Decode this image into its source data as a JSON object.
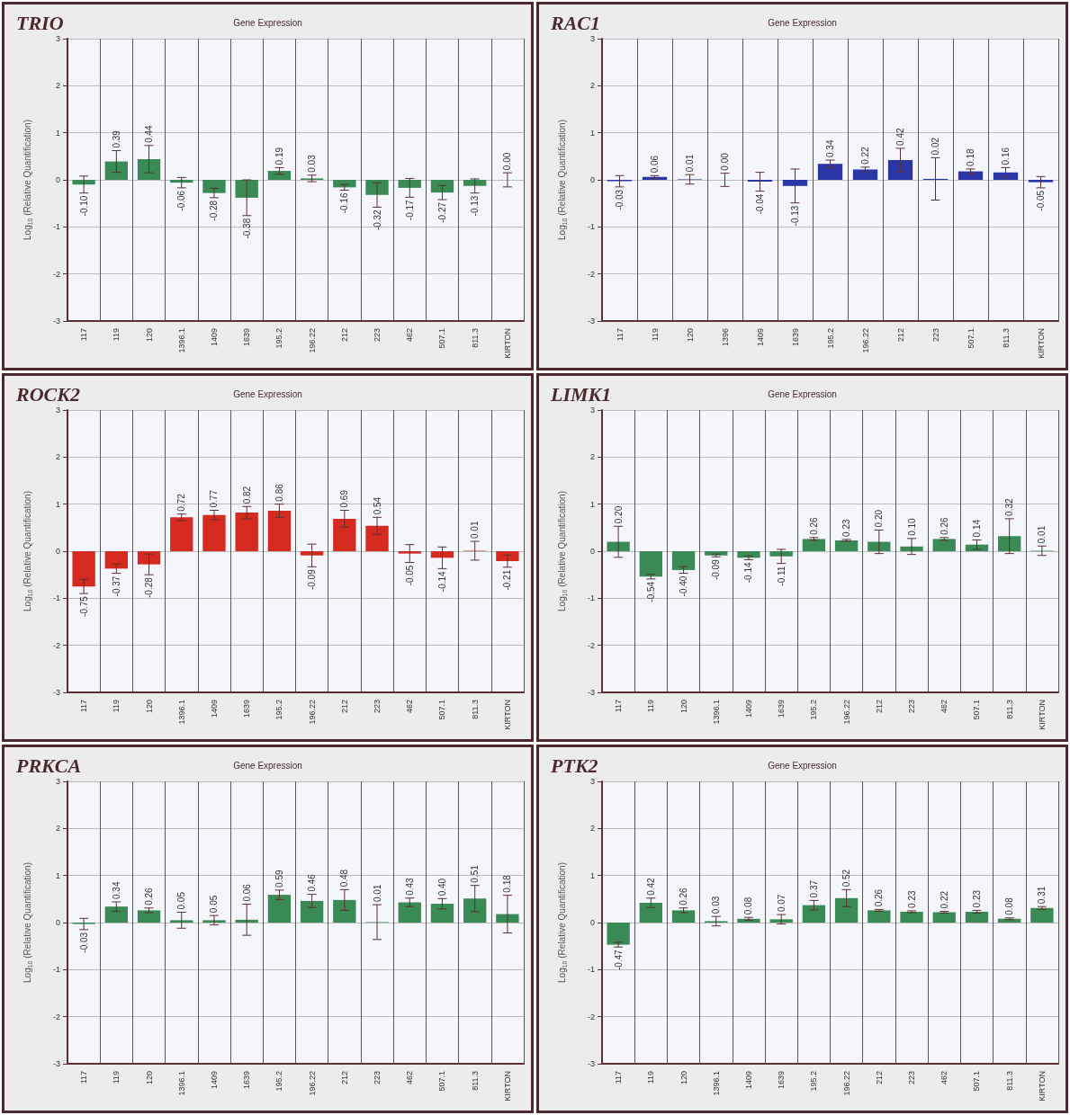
{
  "chart_data": [
    {
      "type": "bar",
      "title": "TRIO",
      "subtitle": "Gene Expression",
      "ylabel": "Log$_{10}$ (Relative Quantification)",
      "categories": [
        "117",
        "119",
        "120",
        "1396.1",
        "1409",
        "1639",
        "195.2",
        "196.22",
        "212",
        "223",
        "462",
        "507.1",
        "811.3",
        "KIRTON"
      ],
      "series": [
        {
          "color": "#3a8a55",
          "values": [
            -0.1,
            0.39,
            0.44,
            -0.06,
            -0.28,
            -0.38,
            0.19,
            0.03,
            -0.16,
            -0.32,
            -0.17,
            -0.27,
            -0.13,
            0.0
          ],
          "errors": [
            0.18,
            0.23,
            0.29,
            0.11,
            0.1,
            0.38,
            0.07,
            0.07,
            0.06,
            0.26,
            0.2,
            0.15,
            0.15,
            0.15
          ],
          "value_labels": [
            "-0.10",
            "0.39",
            "0.44",
            "-0.06",
            "-0.28",
            "-0.38",
            "0.19",
            "0.03",
            "-0.16",
            "-0.32",
            "-0.17",
            "-0.27",
            "-0.13",
            "0.00"
          ]
        }
      ],
      "ylim": [
        -3,
        3
      ],
      "yticks": [
        -3,
        -2,
        -1,
        0,
        1,
        2,
        3
      ],
      "grid": true
    },
    {
      "type": "bar",
      "title": "RAC1",
      "subtitle": "Gene Expression",
      "ylabel": "Log$_{10}$ (Relative Quantification)",
      "categories": [
        "117",
        "119",
        "120",
        "1396",
        "1409",
        "1639",
        "195.2",
        "196.22",
        "212",
        "223",
        "507.1",
        "811.3",
        "KIRTON"
      ],
      "series": [
        {
          "color": "#2a36a8",
          "values": [
            -0.03,
            0.06,
            0.01,
            0.0,
            -0.04,
            -0.13,
            0.34,
            0.22,
            0.42,
            0.02,
            0.18,
            0.16,
            -0.05
          ],
          "errors": [
            0.12,
            0.03,
            0.1,
            0.14,
            0.2,
            0.36,
            0.08,
            0.05,
            0.25,
            0.45,
            0.05,
            0.1,
            0.12
          ],
          "value_labels": [
            "-0.03",
            "0.06",
            "0.01",
            "0.00",
            "-0.04",
            "-0.13",
            "0.34",
            "0.22",
            "0.42",
            "0.02",
            "0.18",
            "0.16",
            "-0.05"
          ]
        }
      ],
      "ylim": [
        -3,
        3
      ],
      "yticks": [
        -3,
        -2,
        -1,
        0,
        1,
        2,
        3
      ],
      "grid": true
    },
    {
      "type": "bar",
      "title": "ROCK2",
      "subtitle": "Gene Expression",
      "ylabel": "Log$_{10}$ (Relative Quantification)",
      "categories": [
        "117",
        "119",
        "120",
        "1396.1",
        "1409",
        "1639",
        "195.2",
        "196.22",
        "212",
        "223",
        "462",
        "507.1",
        "811.3",
        "KIRTON"
      ],
      "series": [
        {
          "color": "#d42a20",
          "values": [
            -0.75,
            -0.37,
            -0.28,
            0.72,
            0.77,
            0.82,
            0.86,
            -0.09,
            0.69,
            0.54,
            -0.05,
            -0.14,
            0.01,
            -0.21
          ],
          "errors": [
            0.15,
            0.1,
            0.22,
            0.07,
            0.1,
            0.13,
            0.14,
            0.24,
            0.18,
            0.18,
            0.19,
            0.23,
            0.2,
            0.13
          ],
          "value_labels": [
            "-0.75",
            "-0.37",
            "-0.28",
            "0.72",
            "0.77",
            "0.82",
            "0.86",
            "-0.09",
            "0.69",
            "0.54",
            "-0.05",
            "-0.14",
            "0.01",
            "-0.21"
          ]
        }
      ],
      "ylim": [
        -3,
        3
      ],
      "yticks": [
        -3,
        -2,
        -1,
        0,
        1,
        2,
        3
      ],
      "grid": true
    },
    {
      "type": "bar",
      "title": "LIMK1",
      "subtitle": "Gene Expression",
      "ylabel": "Log$_{10}$ (Relative Quantification)",
      "categories": [
        "117",
        "119",
        "120",
        "1396.1",
        "1409",
        "1639",
        "195.2",
        "196.22",
        "212",
        "223",
        "462",
        "507.1",
        "811.3",
        "KIRTON"
      ],
      "series": [
        {
          "color": "#3a8a55",
          "values": [
            0.2,
            -0.54,
            -0.4,
            -0.09,
            -0.14,
            -0.11,
            0.26,
            0.23,
            0.2,
            0.1,
            0.26,
            0.14,
            0.32,
            0.01
          ],
          "errors": [
            0.33,
            0.05,
            0.07,
            0.03,
            0.04,
            0.15,
            0.03,
            0.02,
            0.25,
            0.17,
            0.03,
            0.1,
            0.37,
            0.1
          ],
          "value_labels": [
            "0.20",
            "-0.54",
            "-0.40",
            "-0.09",
            "-0.14",
            "-0.11",
            "0.26",
            "0.23",
            "0.20",
            "0.10",
            "0.26",
            "0.14",
            "0.32",
            "0.01"
          ]
        }
      ],
      "ylim": [
        -3,
        3
      ],
      "yticks": [
        -3,
        -2,
        -1,
        0,
        1,
        2,
        3
      ],
      "grid": true
    },
    {
      "type": "bar",
      "title": "PRKCA",
      "subtitle": "Gene Expression",
      "ylabel": "Log$_{10}$ (Relative Quantification)",
      "categories": [
        "117",
        "119",
        "120",
        "1396.1",
        "1409",
        "1639",
        "195.2",
        "196.22",
        "212",
        "223",
        "462",
        "507.1",
        "811.3",
        "KIRTON"
      ],
      "series": [
        {
          "color": "#3a8a55",
          "values": [
            -0.03,
            0.34,
            0.26,
            0.05,
            0.05,
            0.06,
            0.59,
            0.46,
            0.48,
            0.01,
            0.43,
            0.4,
            0.51,
            0.18
          ],
          "errors": [
            0.12,
            0.1,
            0.05,
            0.17,
            0.1,
            0.33,
            0.1,
            0.14,
            0.22,
            0.37,
            0.09,
            0.11,
            0.28,
            0.4
          ],
          "value_labels": [
            "-0.03",
            "0.34",
            "0.26",
            "0.05",
            "0.05",
            "0.06",
            "0.59",
            "0.46",
            "0.48",
            "0.01",
            "0.43",
            "0.40",
            "0.51",
            "0.18"
          ]
        }
      ],
      "ylim": [
        -3,
        3
      ],
      "yticks": [
        -3,
        -2,
        -1,
        0,
        1,
        2,
        3
      ],
      "grid": true
    },
    {
      "type": "bar",
      "title": "PTK2",
      "subtitle": "Gene Expression",
      "ylabel": "Log$_{10}$ (Relative Quantification)",
      "categories": [
        "117",
        "119",
        "120",
        "1396.1",
        "1409",
        "1639",
        "195.2",
        "196.22",
        "212",
        "223",
        "462",
        "507.1",
        "811.3",
        "KIRTON"
      ],
      "series": [
        {
          "color": "#3a8a55",
          "values": [
            -0.47,
            0.42,
            0.26,
            0.03,
            0.08,
            0.07,
            0.37,
            0.52,
            0.26,
            0.23,
            0.22,
            0.23,
            0.08,
            0.31
          ],
          "errors": [
            0.05,
            0.1,
            0.05,
            0.1,
            0.03,
            0.1,
            0.1,
            0.18,
            0.02,
            0.02,
            0.02,
            0.03,
            0.02,
            0.03
          ],
          "value_labels": [
            "-0.47",
            "0.42",
            "0.26",
            "0.03",
            "0.08",
            "0.07",
            "0.37",
            "0.52",
            "0.26",
            "0.23",
            "0.22",
            "0.23",
            "0.08",
            "0.31"
          ]
        }
      ],
      "ylim": [
        -3,
        3
      ],
      "yticks": [
        -3,
        -2,
        -1,
        0,
        1,
        2,
        3
      ],
      "grid": true
    }
  ]
}
